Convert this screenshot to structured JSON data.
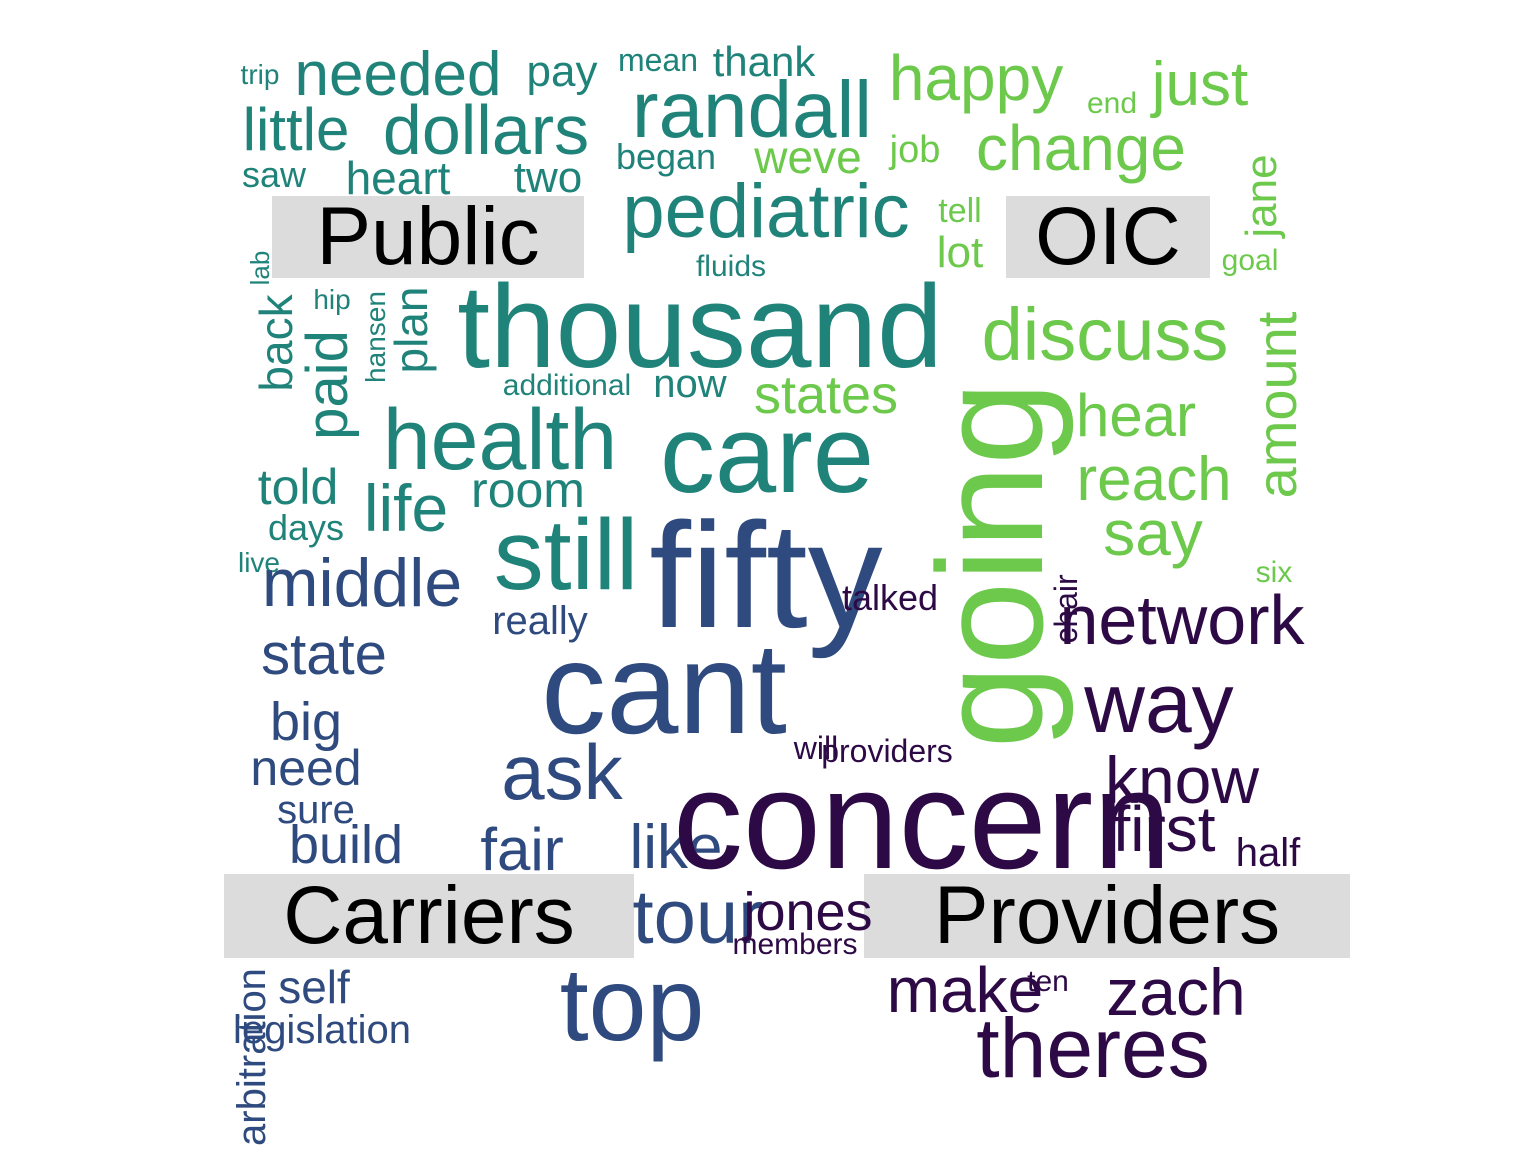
{
  "quadrant_labels": {
    "top_left": "Public",
    "top_right": "OIC",
    "bottom_left": "Carriers",
    "bottom_right": "Providers"
  },
  "palette": {
    "purple": "#2d0a45",
    "navy": "#2e4a7e",
    "teal": "#20837a",
    "green": "#6cc94b",
    "label_bg": "#dcdcdc"
  },
  "words": [
    "trip",
    "needed",
    "pay",
    "mean",
    "thank",
    "happy",
    "just",
    "end",
    "little",
    "dollars",
    "randall",
    "change",
    "weve",
    "job",
    "saw",
    "heart",
    "two",
    "began",
    "pediatric",
    "tell",
    "lot",
    "jane",
    "goal",
    "fluids",
    "lab",
    "back",
    "hip",
    "paid",
    "hansen",
    "plan",
    "thousand",
    "discuss",
    "amount",
    "additional",
    "now",
    "states",
    "health",
    "care",
    "hear",
    "going",
    "told",
    "room",
    "reach",
    "days",
    "life",
    "say",
    "live",
    "son",
    "bill",
    "still",
    "fifty",
    "six",
    "middle",
    "talked",
    "really",
    "chair",
    "network",
    "state",
    "cant",
    "way",
    "big",
    "will",
    "providers",
    "need",
    "ask",
    "know",
    "sure",
    "concern",
    "first",
    "build",
    "fair",
    "like",
    "half",
    "tour",
    "jones",
    "members",
    "self",
    "top",
    "make",
    "ten",
    "zach",
    "legislation",
    "arbitration",
    "theres"
  ]
}
